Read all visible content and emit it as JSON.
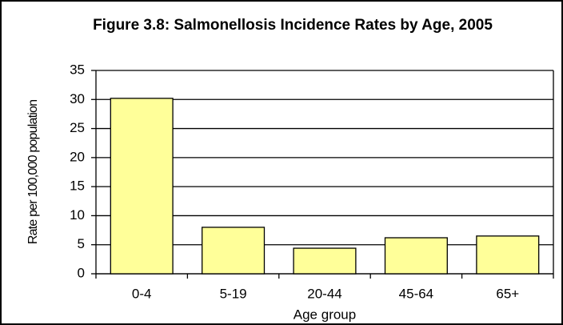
{
  "chart_data": {
    "type": "bar",
    "title": "Figure 3.8: Salmonellosis Incidence Rates by Age, 2005",
    "y_label": "Rate per 100,000 population",
    "x_label": "Age group",
    "categories": [
      "0-4",
      "5-19",
      "20-44",
      "45-64",
      "65+"
    ],
    "values": [
      30.2,
      8.0,
      4.4,
      6.2,
      6.5
    ],
    "color": "#ffff99",
    "ylim": [
      0,
      35
    ],
    "yticks": [
      0,
      5,
      10,
      15,
      20,
      25,
      30,
      35
    ],
    "grid": true
  }
}
